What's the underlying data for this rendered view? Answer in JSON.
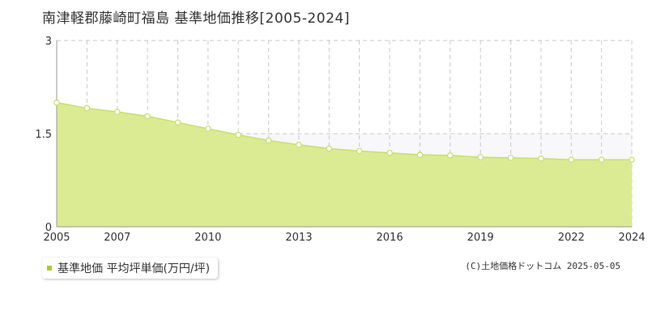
{
  "title": "南津軽郡藤崎町福島 基準地価推移[2005-2024]",
  "colors": {
    "fill": "#dbeb94",
    "line": "#c7df68",
    "marker": "#a9cc33",
    "band": "#f8f7f9",
    "grid": "#c8c8c8"
  },
  "legend": {
    "label": "基準地価 平均坪単価(万円/坪)"
  },
  "copyright": "(C)土地価格ドットコム 2025-05-05",
  "chart_data": {
    "type": "area",
    "title": "南津軽郡藤崎町福島 基準地価推移[2005-2024]",
    "xlabel": "",
    "ylabel": "",
    "x": [
      2005,
      2006,
      2007,
      2008,
      2009,
      2010,
      2011,
      2012,
      2013,
      2014,
      2015,
      2016,
      2017,
      2018,
      2019,
      2020,
      2021,
      2022,
      2023,
      2024
    ],
    "series": [
      {
        "name": "基準地価 平均坪単価(万円/坪)",
        "values": [
          2.0,
          1.91,
          1.85,
          1.78,
          1.68,
          1.58,
          1.48,
          1.39,
          1.32,
          1.26,
          1.22,
          1.19,
          1.16,
          1.15,
          1.12,
          1.11,
          1.1,
          1.08,
          1.08,
          1.08
        ]
      }
    ],
    "xlim": [
      2005,
      2024
    ],
    "ylim": [
      0,
      3
    ],
    "yticks": [
      0,
      1.5,
      3
    ],
    "ytick_labels": [
      "0",
      "1.5",
      "3"
    ],
    "xtick_labels": [
      "2005",
      "2007",
      "2010",
      "2013",
      "2016",
      "2019",
      "2022",
      "2024"
    ],
    "grid": true,
    "legend_position": "bottom-left"
  }
}
